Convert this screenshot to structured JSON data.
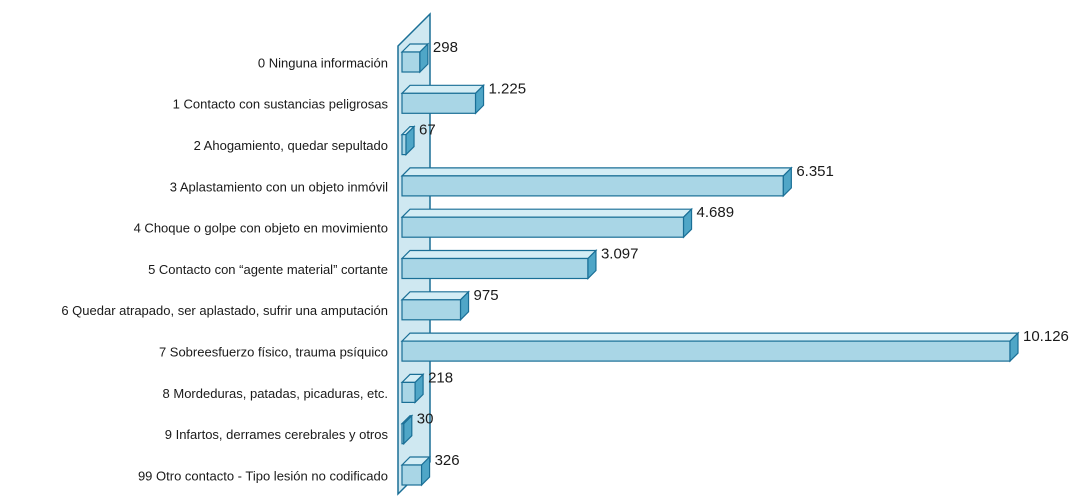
{
  "chart_data": {
    "type": "bar3d",
    "categories": [
      "0 Ninguna información",
      "1 Contacto con sustancias peligrosas",
      "2 Ahogamiento, quedar sepultado",
      "3 Aplastamiento con un objeto inmóvil",
      "4 Choque o golpe con objeto en movimiento",
      "5 Contacto con “agente material” cortante",
      "6 Quedar atrapado, ser aplastado, sufrir una amputación",
      "7 Sobreesfuerzo físico, trauma psíquico",
      "8 Mordeduras, patadas, picaduras, etc.",
      "9 Infartos, derrames cerebrales y otros",
      "99 Otro contacto - Tipo lesión no codificado"
    ],
    "values": [
      298,
      1225,
      67,
      6351,
      4689,
      3097,
      975,
      10126,
      218,
      30,
      326
    ],
    "value_labels": [
      "298",
      "1.225",
      "67",
      "6.351",
      "4.689",
      "3.097",
      "975",
      "10.126",
      "218",
      "30",
      "326"
    ],
    "color": "#a9d6e6"
  }
}
